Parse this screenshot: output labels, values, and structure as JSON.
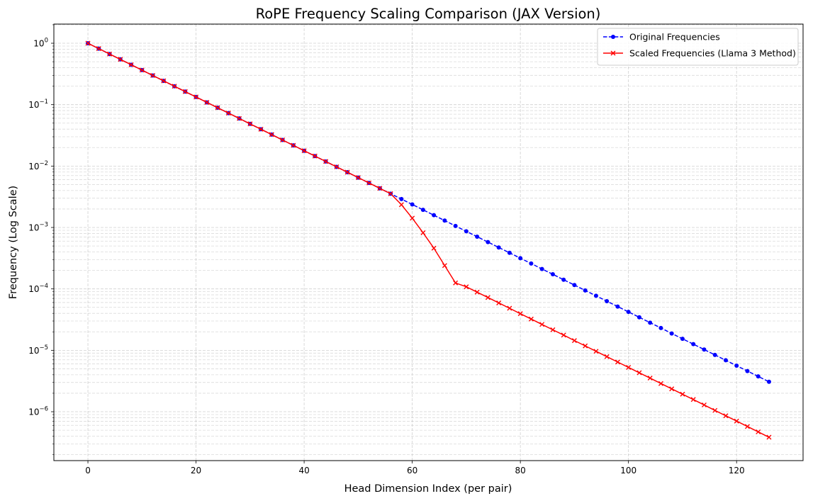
{
  "chart_data": {
    "type": "line",
    "title": "RoPE Frequency Scaling Comparison (JAX Version)",
    "xlabel": "Head Dimension Index (per pair)",
    "ylabel": "Frequency (Log Scale)",
    "xlim": [
      -6.3,
      132.3
    ],
    "ylim": [
      1.6e-07,
      2.05
    ],
    "yscale": "log",
    "xticks": [
      0,
      20,
      40,
      60,
      80,
      100,
      120
    ],
    "yticks": [
      {
        "value": 1e-06,
        "base": "10",
        "exp": "−6"
      },
      {
        "value": 1e-05,
        "base": "10",
        "exp": "−5"
      },
      {
        "value": 0.0001,
        "base": "10",
        "exp": "−4"
      },
      {
        "value": 0.001,
        "base": "10",
        "exp": "−3"
      },
      {
        "value": 0.01,
        "base": "10",
        "exp": "−2"
      },
      {
        "value": 0.1,
        "base": "10",
        "exp": "−1"
      },
      {
        "value": 1,
        "base": "10",
        "exp": "0"
      }
    ],
    "grid": true,
    "legend_position": "top-right",
    "x": [
      0,
      2,
      4,
      6,
      8,
      10,
      12,
      14,
      16,
      18,
      20,
      22,
      24,
      26,
      28,
      30,
      32,
      34,
      36,
      38,
      40,
      42,
      44,
      46,
      48,
      50,
      52,
      54,
      56,
      58,
      60,
      62,
      64,
      66,
      68,
      70,
      72,
      74,
      76,
      78,
      80,
      82,
      84,
      86,
      88,
      90,
      92,
      94,
      96,
      98,
      100,
      102,
      104,
      106,
      108,
      110,
      112,
      114,
      116,
      118,
      120,
      122,
      124,
      126
    ],
    "series": [
      {
        "name": "Original Frequencies",
        "color": "#0000ff",
        "linestyle": "dashed",
        "marker": "circle",
        "values": [
          1.0,
          0.8173,
          0.6681,
          0.5462,
          0.4467,
          0.3652,
          0.2985,
          0.2441,
          0.1995,
          0.1631,
          0.1334,
          0.109,
          0.08913,
          0.07286,
          0.05957,
          0.0487,
          0.03981,
          0.03255,
          0.02661,
          0.02175,
          0.01778,
          0.01454,
          0.01188,
          0.009715,
          0.007943,
          0.006494,
          0.005309,
          0.00434,
          0.003548,
          0.002901,
          0.002371,
          0.001939,
          0.001585,
          0.001296,
          0.001059,
          0.000866,
          0.000708,
          0.000579,
          0.000473,
          0.000387,
          0.000316,
          0.000259,
          0.000211,
          0.000173,
          0.000141,
          0.0001155,
          9.44e-05,
          7.72e-05,
          6.31e-05,
          5.16e-05,
          4.22e-05,
          3.45e-05,
          2.82e-05,
          2.31e-05,
          1.88e-05,
          1.54e-05,
          1.26e-05,
          1.03e-05,
          8.41e-06,
          6.88e-06,
          5.62e-06,
          4.6e-06,
          3.76e-06,
          3.07e-06
        ]
      },
      {
        "name": "Scaled Frequencies (Llama 3 Method)",
        "color": "#ff0000",
        "linestyle": "solid",
        "marker": "x",
        "values": [
          1.0,
          0.8173,
          0.6681,
          0.5462,
          0.4467,
          0.3652,
          0.2985,
          0.2441,
          0.1995,
          0.1631,
          0.1334,
          0.109,
          0.08913,
          0.07286,
          0.05957,
          0.0487,
          0.03981,
          0.03255,
          0.02661,
          0.02175,
          0.01778,
          0.01454,
          0.01188,
          0.009715,
          0.007943,
          0.006494,
          0.005309,
          0.00434,
          0.003548,
          0.00235,
          0.00142,
          0.00082,
          0.00046,
          0.00024,
          0.000125,
          0.0001082,
          8.85e-05,
          7.24e-05,
          5.91e-05,
          4.84e-05,
          3.95e-05,
          3.23e-05,
          2.64e-05,
          2.16e-05,
          1.77e-05,
          1.44e-05,
          1.18e-05,
          9.65e-06,
          7.89e-06,
          6.45e-06,
          5.27e-06,
          4.31e-06,
          3.53e-06,
          2.88e-06,
          2.36e-06,
          1.93e-06,
          1.58e-06,
          1.29e-06,
          1.05e-06,
          8.6e-07,
          7.04e-07,
          5.75e-07,
          4.7e-07,
          3.84e-07
        ]
      }
    ]
  }
}
